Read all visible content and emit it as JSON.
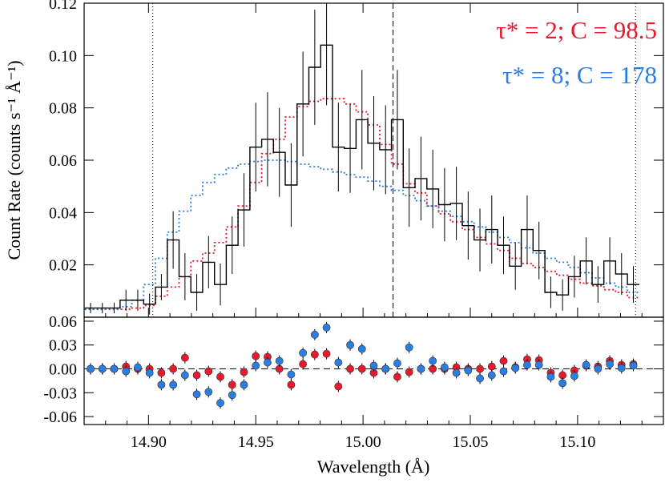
{
  "chart_data": [
    {
      "type": "line",
      "panel": "top",
      "xlabel": "Wavelength (Å)",
      "ylabel": "Count Rate (counts s⁻¹ Å⁻¹)",
      "xlim": [
        14.87,
        15.14
      ],
      "ylim": [
        0.0,
        0.12
      ],
      "yticks": [
        "0.02",
        "0.04",
        "0.06",
        "0.08",
        "0.10",
        "0.12"
      ],
      "ytick_values": [
        0.02,
        0.04,
        0.06,
        0.08,
        0.1,
        0.12
      ],
      "legend": [
        {
          "text": "τ* = 2; C = 98.5",
          "color": "#e8192c"
        },
        {
          "text": "τ* = 8; C = 178",
          "color": "#2a7de1"
        }
      ],
      "legend_placement": "top-right",
      "vlines": [
        {
          "x": 14.902,
          "style": "dotted"
        },
        {
          "x": 15.014,
          "style": "dashed"
        },
        {
          "x": 15.127,
          "style": "dotted"
        }
      ],
      "bin_width": 0.0055,
      "series": [
        {
          "name": "data",
          "color": "#000000",
          "style": "histogram-errorbars",
          "x": [
            14.873,
            14.8785,
            14.884,
            14.8895,
            14.895,
            14.9005,
            14.906,
            14.9115,
            14.917,
            14.9225,
            14.928,
            14.9335,
            14.939,
            14.9445,
            14.95,
            14.9555,
            14.961,
            14.9665,
            14.972,
            14.9775,
            14.983,
            14.9885,
            14.994,
            14.9995,
            15.005,
            15.0105,
            15.016,
            15.0215,
            15.027,
            15.0325,
            15.038,
            15.0435,
            15.049,
            15.0545,
            15.06,
            15.0655,
            15.071,
            15.0765,
            15.082,
            15.0875,
            15.093,
            15.0985,
            15.104,
            15.1095,
            15.115,
            15.1205,
            15.126
          ],
          "values": [
            0.0035,
            0.0035,
            0.0035,
            0.0065,
            0.0065,
            0.005,
            0.0115,
            0.0295,
            0.0155,
            0.0095,
            0.021,
            0.0125,
            0.0275,
            0.041,
            0.065,
            0.068,
            0.063,
            0.0505,
            0.0815,
            0.0955,
            0.104,
            0.065,
            0.0645,
            0.0755,
            0.0665,
            0.064,
            0.0755,
            0.0495,
            0.053,
            0.049,
            0.043,
            0.0435,
            0.035,
            0.0295,
            0.0335,
            0.0275,
            0.0195,
            0.0335,
            0.0255,
            0.0095,
            0.0085,
            0.0155,
            0.0215,
            0.0125,
            0.0215,
            0.0165,
            0.0125
          ],
          "errors": [
            0.002,
            0.002,
            0.002,
            0.004,
            0.004,
            0.004,
            0.005,
            0.011,
            0.009,
            0.007,
            0.01,
            0.008,
            0.011,
            0.014,
            0.017,
            0.018,
            0.017,
            0.016,
            0.02,
            0.022,
            0.023,
            0.017,
            0.017,
            0.019,
            0.018,
            0.017,
            0.019,
            0.015,
            0.016,
            0.015,
            0.014,
            0.014,
            0.013,
            0.012,
            0.013,
            0.011,
            0.009,
            0.013,
            0.011,
            0.006,
            0.006,
            0.008,
            0.009,
            0.007,
            0.009,
            0.008,
            0.007
          ]
        },
        {
          "name": "τ* = 2",
          "color": "#e8192c",
          "style": "dotted-step",
          "x": [
            14.873,
            14.8785,
            14.884,
            14.8895,
            14.895,
            14.9005,
            14.906,
            14.9115,
            14.917,
            14.9225,
            14.928,
            14.9335,
            14.939,
            14.9445,
            14.95,
            14.9555,
            14.961,
            14.9665,
            14.972,
            14.9775,
            14.983,
            14.9885,
            14.994,
            14.9995,
            15.005,
            15.0105,
            15.016,
            15.0215,
            15.027,
            15.0325,
            15.038,
            15.0435,
            15.049,
            15.0545,
            15.06,
            15.0655,
            15.071,
            15.0765,
            15.082,
            15.0875,
            15.093,
            15.0985,
            15.104,
            15.1095,
            15.115,
            15.1205,
            15.126
          ],
          "values": [
            0.003,
            0.003,
            0.003,
            0.003,
            0.0035,
            0.0045,
            0.008,
            0.0115,
            0.0155,
            0.0215,
            0.0245,
            0.0285,
            0.0345,
            0.0425,
            0.0515,
            0.0625,
            0.068,
            0.0765,
            0.0805,
            0.0825,
            0.0835,
            0.0835,
            0.0815,
            0.0785,
            0.0735,
            0.066,
            0.0585,
            0.051,
            0.0475,
            0.0425,
            0.0395,
            0.0365,
            0.0335,
            0.0305,
            0.028,
            0.0255,
            0.0225,
            0.0205,
            0.019,
            0.0175,
            0.016,
            0.0145,
            0.013,
            0.012,
            0.0105,
            0.0095,
            0.0075
          ]
        },
        {
          "name": "τ* = 8",
          "color": "#2a7de1",
          "style": "dotted-step",
          "x": [
            14.873,
            14.8785,
            14.884,
            14.8895,
            14.895,
            14.9005,
            14.906,
            14.9115,
            14.917,
            14.9225,
            14.928,
            14.9335,
            14.939,
            14.9445,
            14.95,
            14.9555,
            14.961,
            14.9665,
            14.972,
            14.9775,
            14.983,
            14.9885,
            14.994,
            14.9995,
            15.005,
            15.0105,
            15.016,
            15.0215,
            15.027,
            15.0325,
            15.038,
            15.0435,
            15.049,
            15.0545,
            15.06,
            15.0655,
            15.071,
            15.0765,
            15.082,
            15.0875,
            15.093,
            15.0985,
            15.104,
            15.1095,
            15.115,
            15.1205,
            15.126
          ],
          "values": [
            0.003,
            0.003,
            0.003,
            0.004,
            0.0065,
            0.0125,
            0.0225,
            0.0325,
            0.0405,
            0.0465,
            0.0515,
            0.0545,
            0.057,
            0.0585,
            0.0595,
            0.06,
            0.06,
            0.0595,
            0.0585,
            0.0575,
            0.0565,
            0.0555,
            0.0545,
            0.0535,
            0.052,
            0.05,
            0.0485,
            0.0465,
            0.0445,
            0.0425,
            0.0405,
            0.0385,
            0.0365,
            0.0345,
            0.0325,
            0.0305,
            0.0285,
            0.0265,
            0.0245,
            0.0225,
            0.021,
            0.019,
            0.017,
            0.015,
            0.013,
            0.0115,
            0.0095
          ]
        }
      ]
    },
    {
      "type": "scatter",
      "panel": "bottom",
      "xlabel": "Wavelength (Å)",
      "xlim": [
        14.87,
        15.14
      ],
      "ylim": [
        -0.07,
        0.065
      ],
      "xticks": [
        "14.90",
        "14.95",
        "15.00",
        "15.05",
        "15.10"
      ],
      "xtick_values": [
        14.9,
        14.95,
        15.0,
        15.05,
        15.1
      ],
      "yticks": [
        "0.06",
        "0.03",
        "0.00",
        "-0.03",
        "-0.06"
      ],
      "ytick_values": [
        0.06,
        0.03,
        0.0,
        -0.03,
        -0.06
      ],
      "zero_line": "dashed",
      "series": [
        {
          "name": "τ* = 2",
          "color": "#e8192c",
          "x": [
            14.873,
            14.8785,
            14.884,
            14.8895,
            14.895,
            14.9005,
            14.906,
            14.9115,
            14.917,
            14.9225,
            14.928,
            14.9335,
            14.939,
            14.9445,
            14.95,
            14.9555,
            14.961,
            14.9665,
            14.972,
            14.9775,
            14.983,
            14.9885,
            14.994,
            14.9995,
            15.005,
            15.0105,
            15.016,
            15.0215,
            15.027,
            15.0325,
            15.038,
            15.0435,
            15.049,
            15.0545,
            15.06,
            15.0655,
            15.071,
            15.0765,
            15.082,
            15.0875,
            15.093,
            15.0985,
            15.104,
            15.1095,
            15.115,
            15.1205,
            15.126
          ],
          "values": [
            0.0,
            0.0,
            0.0,
            0.003,
            0.0,
            0.0,
            -0.005,
            0.0,
            0.014,
            -0.008,
            -0.003,
            -0.01,
            -0.02,
            -0.004,
            0.016,
            0.015,
            0.0,
            -0.02,
            0.006,
            0.018,
            0.019,
            -0.022,
            0.0,
            0.0,
            -0.005,
            0.0,
            -0.01,
            -0.004,
            0.0,
            0.0,
            0.0,
            0.002,
            0.0,
            0.0,
            0.003,
            0.01,
            0.002,
            0.012,
            0.011,
            -0.005,
            -0.008,
            -0.002,
            0.004,
            0.003,
            0.01,
            0.005,
            0.006
          ]
        },
        {
          "name": "τ* = 8",
          "color": "#2a7de1",
          "x": [
            14.873,
            14.8785,
            14.884,
            14.8895,
            14.895,
            14.9005,
            14.906,
            14.9115,
            14.917,
            14.9225,
            14.928,
            14.9335,
            14.939,
            14.9445,
            14.95,
            14.9555,
            14.961,
            14.9665,
            14.972,
            14.9775,
            14.983,
            14.9885,
            14.994,
            14.9995,
            15.005,
            15.0105,
            15.016,
            15.0215,
            15.027,
            15.0325,
            15.038,
            15.0435,
            15.049,
            15.0545,
            15.06,
            15.0655,
            15.071,
            15.0765,
            15.082,
            15.0875,
            15.093,
            15.0985,
            15.104,
            15.1095,
            15.115,
            15.1205,
            15.126
          ],
          "values": [
            0.0,
            0.0,
            0.0,
            -0.003,
            0.002,
            -0.005,
            -0.02,
            -0.02,
            -0.008,
            -0.032,
            -0.029,
            -0.043,
            -0.033,
            -0.02,
            0.004,
            0.008,
            0.01,
            -0.007,
            0.02,
            0.043,
            0.052,
            0.008,
            0.03,
            0.025,
            0.004,
            0.0,
            0.007,
            0.027,
            0.0,
            0.01,
            0.002,
            -0.005,
            -0.002,
            -0.012,
            -0.008,
            -0.003,
            0.001,
            0.005,
            0.005,
            -0.01,
            -0.018,
            -0.009,
            0.005,
            0.0,
            0.006,
            0.001,
            0.004
          ]
        }
      ]
    }
  ]
}
